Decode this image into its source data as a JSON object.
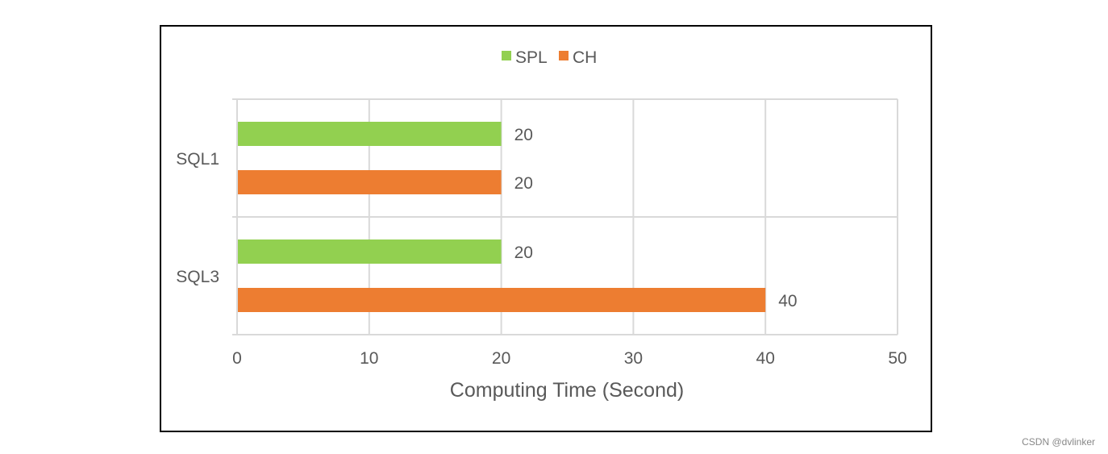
{
  "chart_data": {
    "type": "bar",
    "orientation": "horizontal",
    "categories": [
      "SQL1",
      "SQL3"
    ],
    "series": [
      {
        "name": "SPL",
        "color": "#92D050",
        "values": [
          20,
          20
        ]
      },
      {
        "name": "CH",
        "color": "#ED7D31",
        "values": [
          20,
          40
        ]
      }
    ],
    "xlabel": "Computing Time (Second)",
    "ylabel": "",
    "xlim": [
      0,
      50
    ],
    "xticks": [
      0,
      10,
      20,
      30,
      40,
      50
    ],
    "grid": true,
    "legend_position": "top",
    "data_labels": true
  },
  "watermark": "CSDN @dvlinker"
}
